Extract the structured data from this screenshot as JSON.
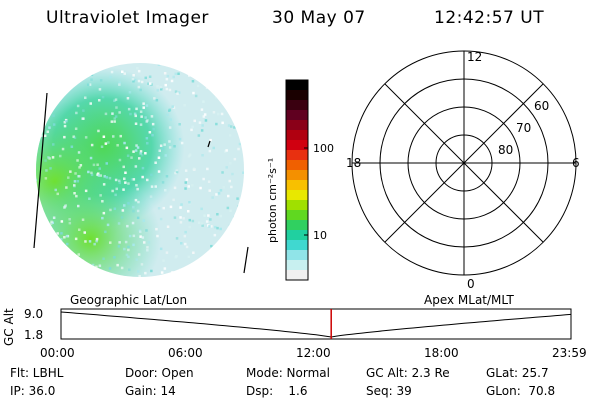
{
  "header": {
    "instrument": "Ultraviolet Imager",
    "date": "30 May 07",
    "time": "12:42:57 UT"
  },
  "colorbar": {
    "label": "photon cm⁻²s⁻¹",
    "ticks": [
      "100",
      "10"
    ],
    "colors": [
      "#000000",
      "#1a0000",
      "#3a0010",
      "#600020",
      "#8a0018",
      "#b00010",
      "#d00010",
      "#e83010",
      "#f06000",
      "#f49000",
      "#f8c000",
      "#e8e800",
      "#a0e000",
      "#60d820",
      "#30d060",
      "#20d0a0",
      "#40d8d0",
      "#90e4e8",
      "#c8f0f0",
      "#f0f0f0"
    ]
  },
  "polar": {
    "mlt_labels": {
      "top": "12",
      "left": "18",
      "right": "6",
      "bottom": "0"
    },
    "lat_labels": [
      "60",
      "70",
      "80"
    ]
  },
  "timeline": {
    "left_label": "Geographic Lat/Lon",
    "right_label": "Apex MLat/MLT",
    "axis_title": "GC Alt",
    "y_top": "9.0",
    "y_bottom": "1.8",
    "time_ticks": [
      "00:00",
      "06:00",
      "12:00",
      "18:00",
      "23:59"
    ],
    "marker_time_hours": 12.716,
    "marker_color": "#cc0000"
  },
  "status": {
    "flt": "Flt: LBHL",
    "door": "Door: Open",
    "mode": "Mode: Normal",
    "gc_alt": "GC Alt: 2.3 Re",
    "glat": "GLat: 25.7",
    "ip": "IP: 36.0",
    "gain": "Gain: 14",
    "dsp": "Dsp:    1.6",
    "seq": "Seq: 39",
    "glon": "GLon:  70.8"
  }
}
